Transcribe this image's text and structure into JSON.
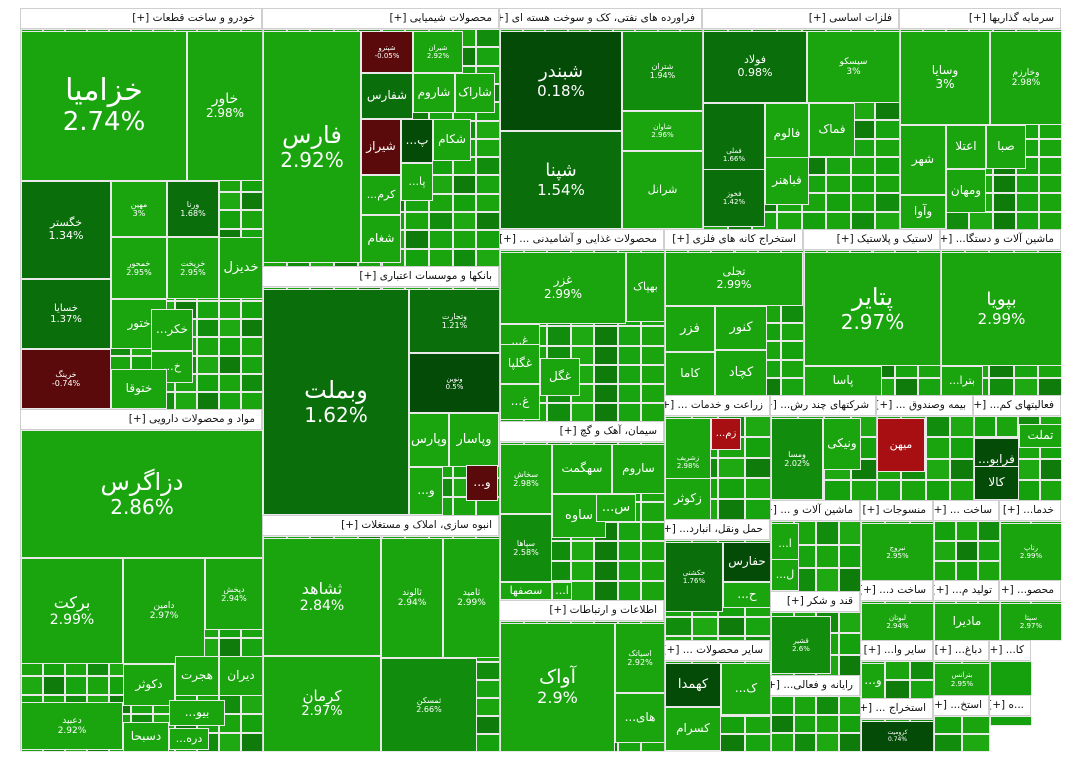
{
  "chart_data": {
    "type": "treemap",
    "title": "",
    "value_unit": "%",
    "colors": {
      "strong_up": "#1aa50f",
      "mid_up": "#128c0d",
      "weak_up": "#0a6e0a",
      "flat": "#054b08",
      "down": "#5a0a0a",
      "strong_down": "#a80f12"
    },
    "sectors": [
      {
        "name": "خودرو و ساخت قطعات [+]",
        "tiles": [
          {
            "name": "خزامیا",
            "change": "2.74%",
            "value": 2.74
          },
          {
            "name": "خاور",
            "change": "2.98%",
            "value": 2.98
          },
          {
            "name": "خگستر",
            "change": "1.34%",
            "value": 1.34
          },
          {
            "name": "مهین",
            "change": "3%",
            "value": 3
          },
          {
            "name": "ورنا",
            "change": "1.68%",
            "value": 1.68
          },
          {
            "name": "خسایا",
            "change": "1.37%",
            "value": 1.37
          },
          {
            "name": "خمحور",
            "change": "2.95%",
            "value": 2.95
          },
          {
            "name": "خریخت",
            "change": "2.95%",
            "value": 2.95
          },
          {
            "name": "خدیزل",
            "change": "",
            "value": 2.9
          },
          {
            "name": "خرینگ",
            "change": "-0.74%",
            "value": -0.74
          },
          {
            "name": "ختور",
            "change": "",
            "value": 2.9
          },
          {
            "name": "...خکر",
            "change": "",
            "value": 2.9
          },
          {
            "name": "...خ",
            "change": "",
            "value": 2.9
          },
          {
            "name": "ختوقا",
            "change": "",
            "value": 2.9
          }
        ]
      },
      {
        "name": "محصولات شیمیایی [+]",
        "tiles": [
          {
            "name": "فارس",
            "change": "2.92%",
            "value": 2.92
          },
          {
            "name": "شپترو",
            "change": "-0.05%",
            "value": -0.05
          },
          {
            "name": "شیران",
            "change": "2.92%",
            "value": 2.92
          },
          {
            "name": "شفارس",
            "change": "",
            "value": 1.0
          },
          {
            "name": "شاروم",
            "change": "",
            "value": 2.9
          },
          {
            "name": "شاراک",
            "change": "",
            "value": 2.9
          },
          {
            "name": "شیراز",
            "change": "",
            "value": -0.5
          },
          {
            "name": "...پ",
            "change": "",
            "value": 0.5
          },
          {
            "name": "شکام",
            "change": "",
            "value": 2.9
          },
          {
            "name": "...پا",
            "change": "",
            "value": 2.9
          },
          {
            "name": "...کرم",
            "change": "",
            "value": 2.9
          },
          {
            "name": "شغام",
            "change": "",
            "value": 2.9
          }
        ]
      },
      {
        "name": "فراورده های نفتی، کک و سوخت هسته ای [+]",
        "tiles": [
          {
            "name": "شبندر",
            "change": "0.18%",
            "value": 0.18
          },
          {
            "name": "شتران",
            "change": "1.94%",
            "value": 1.94
          },
          {
            "name": "شپنا",
            "change": "1.54%",
            "value": 1.54
          },
          {
            "name": "شاوان",
            "change": "2.96%",
            "value": 2.96
          },
          {
            "name": "شرانل",
            "change": "",
            "value": 2.9
          }
        ]
      },
      {
        "name": "فلزات اساسی [+]",
        "tiles": [
          {
            "name": "فولاد",
            "change": "0.98%",
            "value": 0.98
          },
          {
            "name": "سیسکو",
            "change": "3%",
            "value": 3
          },
          {
            "name": "فملی",
            "change": "1.66%",
            "value": 1.66
          },
          {
            "name": "فالوم",
            "change": "",
            "value": 2.9
          },
          {
            "name": "فماک",
            "change": "",
            "value": 2.9
          },
          {
            "name": "فخوز",
            "change": "1.42%",
            "value": 1.42
          },
          {
            "name": "فباهنر",
            "change": "",
            "value": 2.9
          }
        ]
      },
      {
        "name": "سرمایه گذاریها [+]",
        "tiles": [
          {
            "name": "وسایا",
            "change": "3%",
            "value": 3
          },
          {
            "name": "وخارزم",
            "change": "2.98%",
            "value": 2.98
          },
          {
            "name": "شهر",
            "change": "",
            "value": 2.9
          },
          {
            "name": "اعتلا",
            "change": "",
            "value": 2.9
          },
          {
            "name": "صبا",
            "change": "",
            "value": 2.9
          },
          {
            "name": "ومهان",
            "change": "",
            "value": 2.9
          },
          {
            "name": "وآوا",
            "change": "",
            "value": 2.9
          }
        ]
      },
      {
        "name": "بانکها و موسسات اعتباری [+]",
        "tiles": [
          {
            "name": "وبملت",
            "change": "1.62%",
            "value": 1.62
          },
          {
            "name": "وتجارت",
            "change": "1.21%",
            "value": 1.21
          },
          {
            "name": "ونوین",
            "change": "0.5%",
            "value": 0.5
          },
          {
            "name": "وپارس",
            "change": "",
            "value": 2.9
          },
          {
            "name": "وپاسار",
            "change": "",
            "value": 2.9
          },
          {
            "name": "...و",
            "change": "",
            "value": 2.9
          },
          {
            "name": "...و",
            "change": "",
            "value": -0.5
          }
        ]
      },
      {
        "name": "محصولات غذایی و آشامیدنی ... [+]",
        "tiles": [
          {
            "name": "غزر",
            "change": "2.99%",
            "value": 2.99
          },
          {
            "name": "بهپاک",
            "change": "",
            "value": 2.9
          },
          {
            "name": "...غ",
            "change": "",
            "value": 2.9
          },
          {
            "name": "غگلپا",
            "change": "",
            "value": 2.9
          },
          {
            "name": "غگل",
            "change": "",
            "value": 2.9
          },
          {
            "name": "...غ",
            "change": "",
            "value": 2.9
          }
        ]
      },
      {
        "name": "استخراج کانه های فلزی [+]",
        "tiles": [
          {
            "name": "تجلی",
            "change": "2.99%",
            "value": 2.99
          },
          {
            "name": "فزر",
            "change": "",
            "value": 2.9
          },
          {
            "name": "کنور",
            "change": "",
            "value": 2.9
          },
          {
            "name": "کاما",
            "change": "",
            "value": 2.9
          },
          {
            "name": "کچاد",
            "change": "",
            "value": 2.9
          }
        ]
      },
      {
        "name": "لاستیک و پلاستیک [+]",
        "tiles": [
          {
            "name": "پتایر",
            "change": "2.97%",
            "value": 2.97
          },
          {
            "name": "پاسا",
            "change": "",
            "value": 2.9
          }
        ]
      },
      {
        "name": "ماشین آلات و دستگا... [+]",
        "tiles": [
          {
            "name": "بپویا",
            "change": "2.99%",
            "value": 2.99
          },
          {
            "name": "...بترا",
            "change": "",
            "value": 2.9
          }
        ]
      },
      {
        "name": "مواد و محصولات دارویی [+]",
        "tiles": [
          {
            "name": "دزاگرس",
            "change": "2.86%",
            "value": 2.86
          },
          {
            "name": "برکت",
            "change": "2.99%",
            "value": 2.99
          },
          {
            "name": "دامین",
            "change": "2.97%",
            "value": 2.97
          },
          {
            "name": "دپخش",
            "change": "2.94%",
            "value": 2.94
          },
          {
            "name": "دکوثر",
            "change": "",
            "value": 2.9
          },
          {
            "name": "هجرت",
            "change": "",
            "value": 2.9
          },
          {
            "name": "دیران",
            "change": "",
            "value": 2.9
          },
          {
            "name": "دعبید",
            "change": "2.92%",
            "value": 2.92
          },
          {
            "name": "...بیو",
            "change": "",
            "value": 2.9
          },
          {
            "name": "دسبحا",
            "change": "",
            "value": 2.9
          },
          {
            "name": "...دره",
            "change": "",
            "value": 2.9
          }
        ]
      },
      {
        "name": "انبوه سازی، املاک و مستغلات [+]",
        "tiles": [
          {
            "name": "ثشاهد",
            "change": "2.84%",
            "value": 2.84
          },
          {
            "name": "ثالوند",
            "change": "2.94%",
            "value": 2.94
          },
          {
            "name": "ثامید",
            "change": "2.99%",
            "value": 2.99
          },
          {
            "name": "کرمان",
            "change": "2.97%",
            "value": 2.97
          },
          {
            "name": "ثمسکن",
            "change": "2.66%",
            "value": 2.66
          }
        ]
      },
      {
        "name": "سیمان، آهک و گچ [+]",
        "tiles": [
          {
            "name": "سخاش",
            "change": "2.98%",
            "value": 2.98
          },
          {
            "name": "سهگمت",
            "change": "",
            "value": 2.9
          },
          {
            "name": "ساروم",
            "change": "",
            "value": 2.9
          },
          {
            "name": "سپاها",
            "change": "2.58%",
            "value": 2.58
          },
          {
            "name": "ساوه",
            "change": "",
            "value": 2.9
          },
          {
            "name": "...س",
            "change": "",
            "value": 2.9
          },
          {
            "name": "سصفها",
            "change": "",
            "value": 2.9
          },
          {
            "name": "...ا",
            "change": "",
            "value": 2.9
          }
        ]
      },
      {
        "name": "اطلاعات و ارتباطات [+]",
        "tiles": [
          {
            "name": "آواک",
            "change": "2.9%",
            "value": 2.9
          },
          {
            "name": "اسیاتک",
            "change": "2.92%",
            "value": 2.92
          },
          {
            "name": "...های",
            "change": "",
            "value": 2.9
          }
        ]
      },
      {
        "name": "زراعت و خدمات ... [+]",
        "tiles": [
          {
            "name": "زشریف",
            "change": "2.98%",
            "value": 2.98
          },
          {
            "name": "...زم",
            "change": "",
            "value": -1.0
          },
          {
            "name": "زکوثر",
            "change": "",
            "value": 2.9
          }
        ]
      },
      {
        "name": "شرکتهای چند رش... [+]",
        "tiles": [
          {
            "name": "ومسا",
            "change": "2.02%",
            "value": 2.02
          },
          {
            "name": "ونیکی",
            "change": "",
            "value": 2.9
          }
        ]
      },
      {
        "name": "بیمه وصندوق ... [+]",
        "tiles": [
          {
            "name": "میهن",
            "change": "",
            "value": -1.0
          }
        ]
      },
      {
        "name": "فعالیتهای کم... [+]",
        "tiles": [
          {
            "name": "تملت",
            "change": "",
            "value": 2.9
          },
          {
            "name": "...فرابو",
            "change": "",
            "value": 0.5
          },
          {
            "name": "کالا",
            "change": "",
            "value": 0.5
          }
        ]
      },
      {
        "name": "حمل ونقل، انبارد... [+]",
        "tiles": [
          {
            "name": "حکشتی",
            "change": "1.76%",
            "value": 1.76
          },
          {
            "name": "حفارس",
            "change": "",
            "value": 0.5
          },
          {
            "name": "...ح",
            "change": "",
            "value": 2.9
          },
          {
            "name": "حتوکا",
            "change": "",
            "value": 2.9
          }
        ]
      },
      {
        "name": "ماشین آلات و ... [+]",
        "tiles": [
          {
            "name": "...ا",
            "change": "",
            "value": 2.9
          },
          {
            "name": "...ل",
            "change": "",
            "value": 2.9
          }
        ]
      },
      {
        "name": "منسوجات [+]",
        "tiles": [
          {
            "name": "نبروج",
            "change": "2.95%",
            "value": 2.95
          }
        ]
      },
      {
        "name": "ساخت ... [+]",
        "tiles": []
      },
      {
        "name": "خدما... [+]",
        "tiles": [
          {
            "name": "رتاپ",
            "change": "2.99%",
            "value": 2.99
          }
        ]
      },
      {
        "name": "قند و شکر [+]",
        "tiles": [
          {
            "name": "قشیر",
            "change": "2.6%",
            "value": 2.6
          }
        ]
      },
      {
        "name": "ساخت د... [+]",
        "tiles": [
          {
            "name": "لبوتان",
            "change": "2.94%",
            "value": 2.94
          }
        ]
      },
      {
        "name": "تولید م... [+]",
        "tiles": [
          {
            "name": "مادیرا",
            "change": "",
            "value": 2.9
          }
        ]
      },
      {
        "name": "محصو... [+]",
        "tiles": [
          {
            "name": "سپتا",
            "change": "2.97%",
            "value": 2.97
          }
        ]
      },
      {
        "name": "سایر محصولات ... [+]",
        "tiles": [
          {
            "name": "کهمدا",
            "change": "",
            "value": 0.5
          },
          {
            "name": "...ک",
            "change": "",
            "value": 2.9
          },
          {
            "name": "کسرام",
            "change": "",
            "value": 2.9
          }
        ]
      },
      {
        "name": "سایر وا... [+]",
        "tiles": [
          {
            "name": "...و",
            "change": "",
            "value": 2.9
          }
        ]
      },
      {
        "name": "دباغ... [+]",
        "tiles": [
          {
            "name": "بترانس",
            "change": "2.95%",
            "value": 2.95
          }
        ]
      },
      {
        "name": "کا... [+]",
        "tiles": []
      },
      {
        "name": "رایانه و فعالی... [+]",
        "tiles": []
      },
      {
        "name": "استخراج ... [+]",
        "tiles": [
          {
            "name": "کرومیت",
            "change": "0.74%",
            "value": 0.74
          }
        ]
      },
      {
        "name": "استخ... [+]",
        "tiles": []
      },
      {
        "name": "...ه [+]",
        "tiles": []
      }
    ]
  }
}
